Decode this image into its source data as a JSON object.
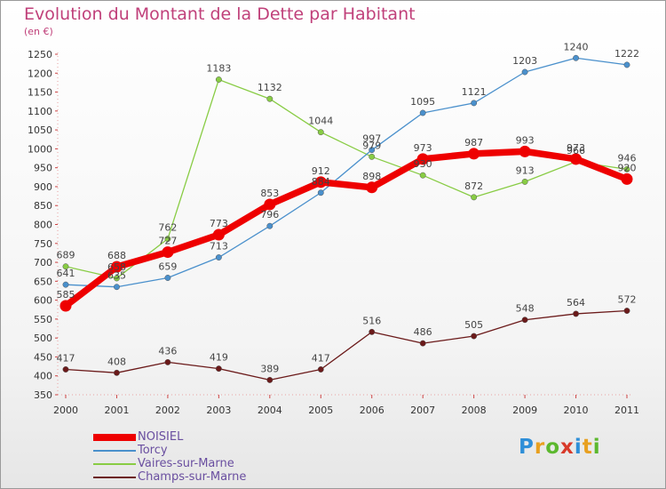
{
  "header": {
    "title": "Evolution du Montant de la Dette par Habitant",
    "subtitle": "(en €)"
  },
  "brand": {
    "text": "Proxiti",
    "letters": [
      {
        "ch": "P",
        "color": "#2f8fd8"
      },
      {
        "ch": "r",
        "color": "#e8a020"
      },
      {
        "ch": "o",
        "color": "#5cb82e"
      },
      {
        "ch": "x",
        "color": "#d83a2a"
      },
      {
        "ch": "i",
        "color": "#2f8fd8"
      },
      {
        "ch": "t",
        "color": "#e8a020"
      },
      {
        "ch": "i",
        "color": "#5cb82e"
      }
    ]
  },
  "chart_data": {
    "type": "line",
    "title": "Evolution du Montant de la Dette par Habitant",
    "ylabel": "(en €)",
    "x": [
      "2000",
      "2001",
      "2002",
      "2003",
      "2004",
      "2005",
      "2006",
      "2007",
      "2008",
      "2009",
      "2010",
      "2011"
    ],
    "ylim": [
      350,
      1250
    ],
    "yticks": [
      350,
      400,
      450,
      500,
      550,
      600,
      650,
      700,
      750,
      800,
      850,
      900,
      950,
      1000,
      1050,
      1100,
      1150,
      1200,
      1250
    ],
    "grid": false,
    "legend": "bottom-left",
    "series": [
      {
        "name": "NOISIEL",
        "color": "#ee0000",
        "values": [
          585,
          688,
          727,
          773,
          853,
          912,
          898,
          973,
          987,
          993,
          973,
          920
        ]
      },
      {
        "name": "Torcy",
        "color": "#4a90cc",
        "values": [
          641,
          635,
          659,
          713,
          796,
          884,
          997,
          1095,
          1121,
          1203,
          1240,
          1222
        ]
      },
      {
        "name": "Vaires-sur-Marne",
        "color": "#88cc44",
        "values": [
          689,
          658,
          762,
          1183,
          1132,
          1044,
          979,
          930,
          872,
          913,
          966,
          946
        ]
      },
      {
        "name": "Champs-sur-Marne",
        "color": "#6b1a1a",
        "values": [
          417,
          408,
          436,
          419,
          389,
          417,
          516,
          486,
          505,
          548,
          564,
          572
        ]
      }
    ]
  }
}
